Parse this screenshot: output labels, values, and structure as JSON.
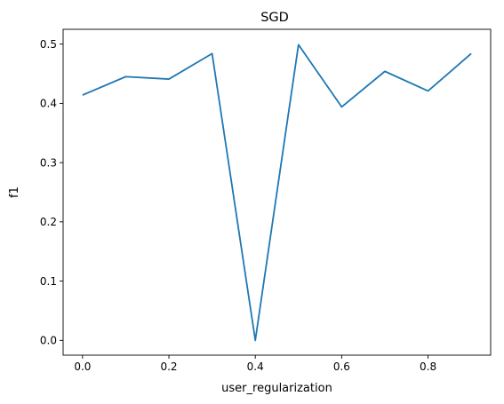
{
  "chart_data": {
    "type": "line",
    "title": "SGD",
    "xlabel": "user_regularization",
    "ylabel": "f1",
    "xlim": [
      -0.045,
      0.945
    ],
    "ylim": [
      -0.025,
      0.525
    ],
    "xticks": [
      0.0,
      0.2,
      0.4,
      0.6,
      0.8
    ],
    "xtick_labels": [
      "0.0",
      "0.2",
      "0.4",
      "0.6",
      "0.8"
    ],
    "yticks": [
      0.0,
      0.1,
      0.2,
      0.3,
      0.4,
      0.5
    ],
    "ytick_labels": [
      "0.0",
      "0.1",
      "0.2",
      "0.3",
      "0.4",
      "0.5"
    ],
    "grid": false,
    "series": [
      {
        "color": "#1f77b4",
        "x": [
          0.0,
          0.1,
          0.2,
          0.3,
          0.4,
          0.5,
          0.6,
          0.7,
          0.8,
          0.9
        ],
        "y": [
          0.414,
          0.445,
          0.441,
          0.484,
          0.0,
          0.499,
          0.394,
          0.454,
          0.421,
          0.484
        ]
      }
    ]
  }
}
